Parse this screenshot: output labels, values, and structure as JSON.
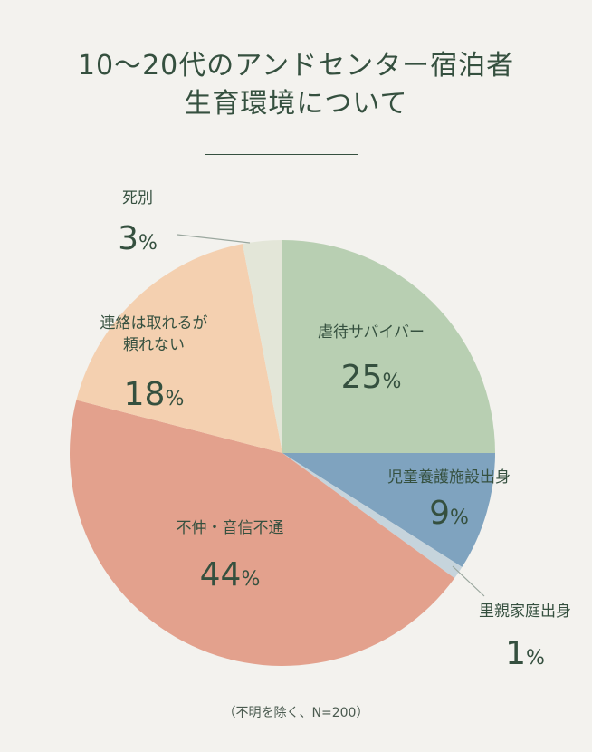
{
  "title": {
    "line1": "10〜20代のアンドセンター宿泊者",
    "line2": "生育環境について"
  },
  "note": "（不明を除く、N=200）",
  "chart_data": {
    "type": "pie",
    "title": "10〜20代のアンドセンター宿泊者 生育環境について",
    "start_angle_deg": 0,
    "direction": "clockwise",
    "slices": [
      {
        "label": [
          "虐待サバイバー"
        ],
        "value": 25,
        "display": "25%",
        "color": "#b8cfb2"
      },
      {
        "label": [
          "児童養護施設出身"
        ],
        "value": 9,
        "display": "9%",
        "color": "#7fa3bf"
      },
      {
        "label": [
          "里親家庭出身"
        ],
        "value": 1,
        "display": "1%",
        "color": "#c6d4dc"
      },
      {
        "label": [
          "不仲・音信不通"
        ],
        "value": 44,
        "display": "44%",
        "color": "#e3a18d"
      },
      {
        "label": [
          "連絡は取れるが",
          "頼れない"
        ],
        "value": 18,
        "display": "18%",
        "color": "#f4d0b0"
      },
      {
        "label": [
          "死別"
        ],
        "value": 3,
        "display": "3%",
        "color": "#e3e6d8"
      }
    ]
  }
}
